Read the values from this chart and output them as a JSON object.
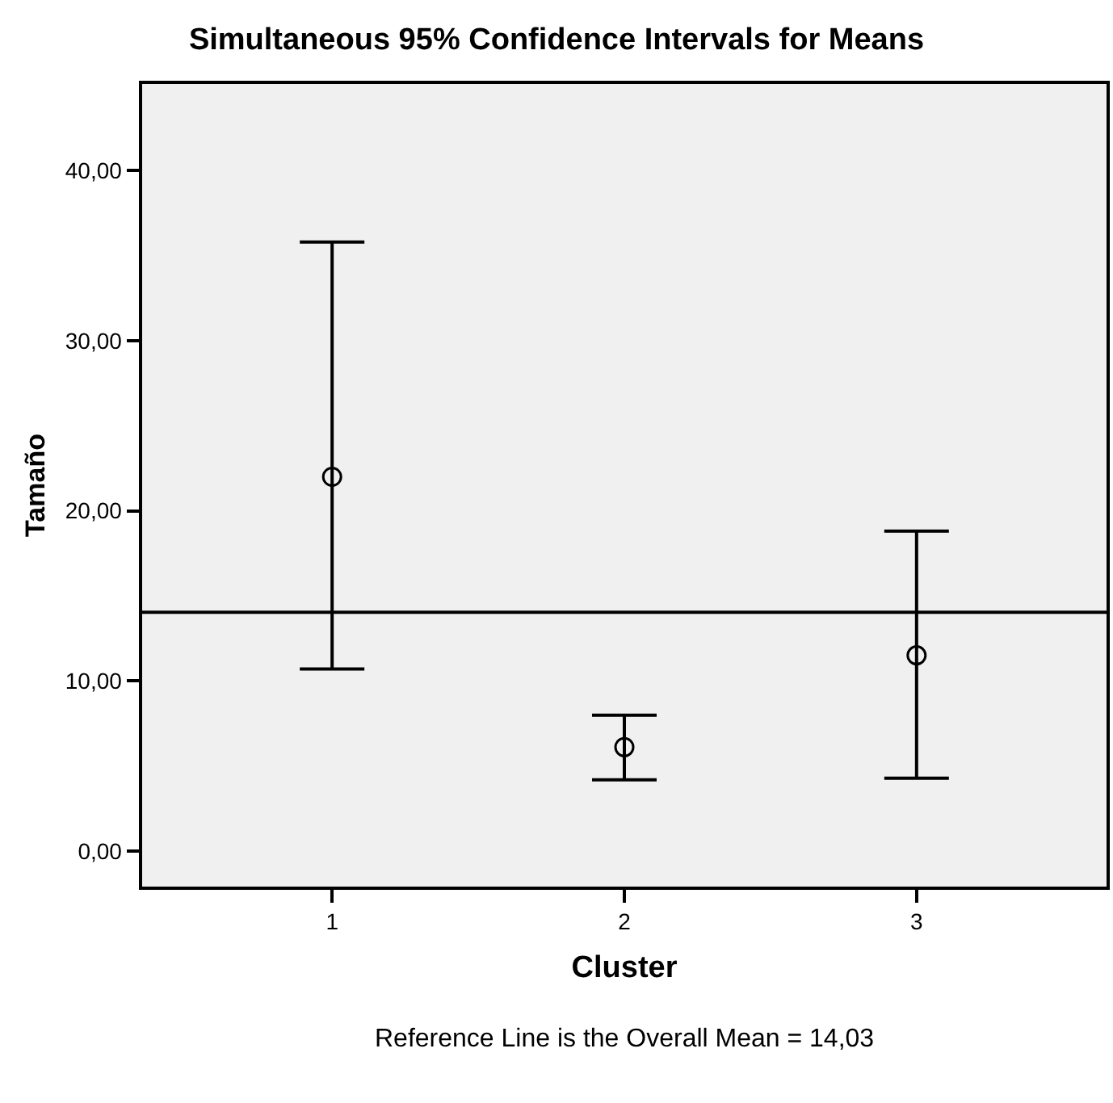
{
  "chart_data": {
    "type": "scatter",
    "title": "Simultaneous 95% Confidence Intervals for Means",
    "xlabel": "Cluster",
    "ylabel": "Tamaño",
    "categories": [
      "1",
      "2",
      "3"
    ],
    "series": [
      {
        "color": "#000000",
        "values": [
          22,
          6.1,
          11.5
        ],
        "errors": [
          [
            10.7,
            35.8
          ],
          [
            4.18,
            7.98
          ],
          [
            4.28,
            18.8
          ]
        ]
      }
    ],
    "marker": "circle",
    "grid": false,
    "ylim": [
      -2.1,
      45.1
    ],
    "yticks": [
      {
        "value": 0,
        "label": "0,00"
      },
      {
        "value": 10,
        "label": "10,00"
      },
      {
        "value": 20,
        "label": "20,00"
      },
      {
        "value": 30,
        "label": "30,00"
      },
      {
        "value": 40,
        "label": "40,00"
      }
    ],
    "ref_lines": [
      {
        "axis": "y",
        "value": 14.03,
        "color": "#000000"
      }
    ],
    "annotations": [
      "Reference Line is the Overall Mean = 14,03"
    ]
  }
}
